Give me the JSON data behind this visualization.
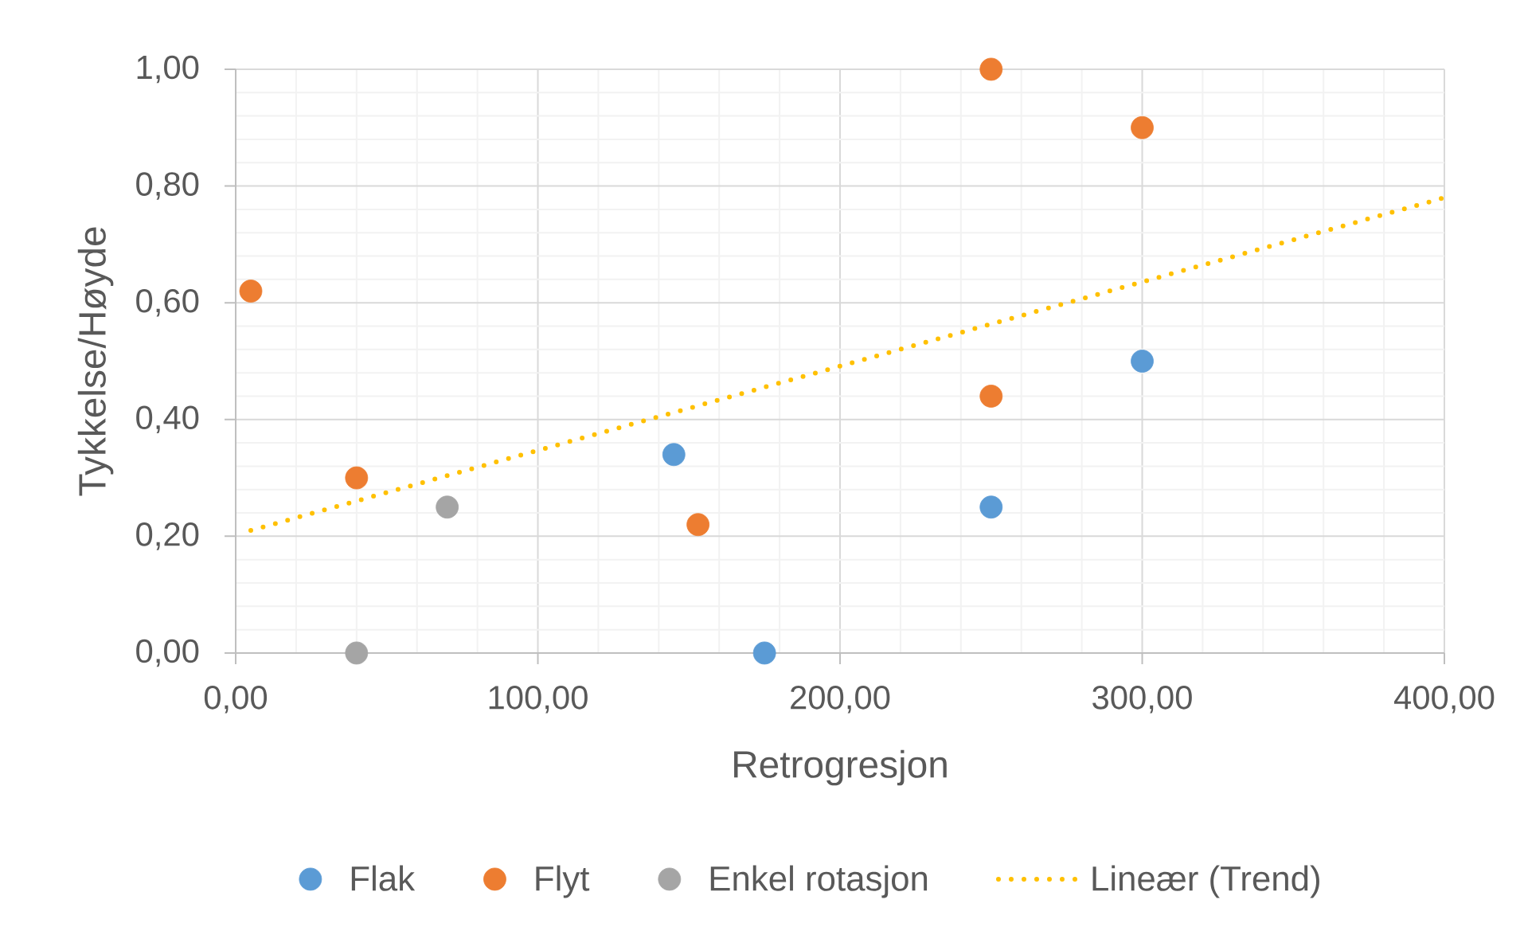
{
  "chart_data": {
    "type": "scatter",
    "xlabel": "Retrogresjon",
    "ylabel": "Tykkelse/Høyde",
    "xlim": [
      0,
      400
    ],
    "xticks": [
      {
        "value": 0,
        "label": "0,00"
      },
      {
        "value": 100,
        "label": "100,00"
      },
      {
        "value": 200,
        "label": "200,00"
      },
      {
        "value": 300,
        "label": "300,00"
      },
      {
        "value": 400,
        "label": "400,00"
      }
    ],
    "ylim": [
      0,
      1
    ],
    "yticks": [
      {
        "value": 0,
        "label": "0,00"
      },
      {
        "value": 0.2,
        "label": "0,20"
      },
      {
        "value": 0.4,
        "label": "0,40"
      },
      {
        "value": 0.6,
        "label": "0,60"
      },
      {
        "value": 0.8,
        "label": "0,80"
      },
      {
        "value": 1,
        "label": "1,00"
      }
    ],
    "grid": true,
    "legend": "bottom",
    "marker": "circle",
    "series": [
      {
        "name": "Flak",
        "color": "#5b9bd5",
        "x": [
          145,
          175,
          250,
          300
        ],
        "values": [
          0.34,
          0,
          0.25,
          0.5
        ]
      },
      {
        "name": "Flyt",
        "color": "#ed7d31",
        "x": [
          5,
          40,
          153,
          250,
          300,
          250
        ],
        "values": [
          0.62,
          0.3,
          0.22,
          1.0,
          0.9,
          0.44
        ]
      },
      {
        "name": "Enkel rotasjon",
        "color": "#a5a5a5",
        "x": [
          40,
          70
        ],
        "values": [
          0,
          0.25
        ]
      },
      {
        "name": "Lineær (Trend)",
        "type": "line",
        "color": "#ffc000",
        "line_style": "dotted",
        "marker": "none",
        "x": [
          5,
          400
        ],
        "values": [
          0.21,
          0.78
        ]
      }
    ]
  }
}
